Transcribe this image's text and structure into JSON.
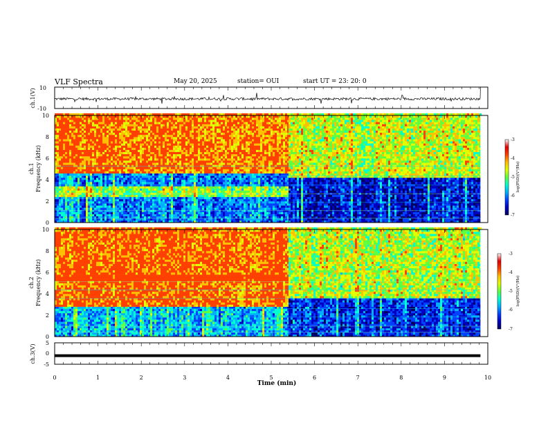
{
  "header": {
    "title": "VLF Spectra",
    "date": "May 20, 2025",
    "station": "station= OUI",
    "start": "start  UT  =   23: 20: 0"
  },
  "colors": {
    "background": "#ffffff",
    "trace": "#000000",
    "colormap": [
      "#000060",
      "#0000c0",
      "#0040ff",
      "#00b0ff",
      "#00ffd0",
      "#60ff40",
      "#e0ff00",
      "#ffc000",
      "#ff4000",
      "#e00000",
      "#ffffff"
    ]
  },
  "chart_data": [
    {
      "type": "line",
      "id": "ch1",
      "ylabel": "ch.1(V)",
      "ylim": [
        -10,
        10
      ],
      "yticks": [
        "10",
        "-10"
      ],
      "baseline": -1,
      "noise_amplitude": 1.2,
      "data_end_min": 9.83
    },
    {
      "type": "heatmap",
      "id": "ch1-spectrogram",
      "ylabel_top": "ch.1",
      "ylabel": "Frequency (kHz)",
      "ylim": [
        0,
        10
      ],
      "yticks": [
        "0",
        "2",
        "4",
        "6",
        "8",
        "10"
      ],
      "colorbar": {
        "label": "log(PSD)(V²/Hz)",
        "ticks": [
          "-3",
          "-4",
          "-5",
          "-6",
          "-7"
        ],
        "range": [
          -7,
          -3
        ]
      },
      "segments": [
        {
          "from_min": 0,
          "to_min": 5.4,
          "cutoff_khz": 4.6,
          "high_level": -3.6,
          "low_level": -5.9,
          "emission_band_khz": [
            2.2,
            3.4
          ]
        },
        {
          "from_min": 5.4,
          "to_min": 9.83,
          "cutoff_khz": 4.2,
          "high_level": -4.4,
          "low_level": -6.5,
          "emission_band_khz": []
        }
      ]
    },
    {
      "type": "heatmap",
      "id": "ch2-spectrogram",
      "ylabel_top": "ch.2",
      "ylabel": "Frequency (kHz)",
      "ylim": [
        0,
        10
      ],
      "yticks": [
        "0",
        "2",
        "4",
        "6",
        "8",
        "10"
      ],
      "colorbar": {
        "label": "log(PSD)(V²/Hz)",
        "ticks": [
          "-3",
          "-4",
          "-5",
          "-6",
          "-7"
        ],
        "range": [
          -7,
          -3
        ]
      },
      "segments": [
        {
          "from_min": 0,
          "to_min": 5.4,
          "cutoff_khz": 2.8,
          "high_level": -3.5,
          "low_level": -5.6,
          "emission_band_khz": [
            5.2,
            5.8
          ]
        },
        {
          "from_min": 5.4,
          "to_min": 9.83,
          "cutoff_khz": 3.6,
          "high_level": -4.5,
          "low_level": -6.3,
          "emission_band_khz": []
        }
      ]
    },
    {
      "type": "line",
      "id": "ch3",
      "ylabel": "ch.3(V)",
      "ylim": [
        -5,
        5
      ],
      "yticks": [
        "5",
        "0",
        "-5"
      ],
      "baseline": -1,
      "noise_amplitude": 0,
      "data_end_min": 9.83
    }
  ],
  "xaxis": {
    "label": "Time (min)",
    "xlim": [
      0,
      10
    ],
    "ticks": [
      "0",
      "1",
      "2",
      "3",
      "4",
      "5",
      "6",
      "7",
      "8",
      "9",
      "10"
    ]
  }
}
